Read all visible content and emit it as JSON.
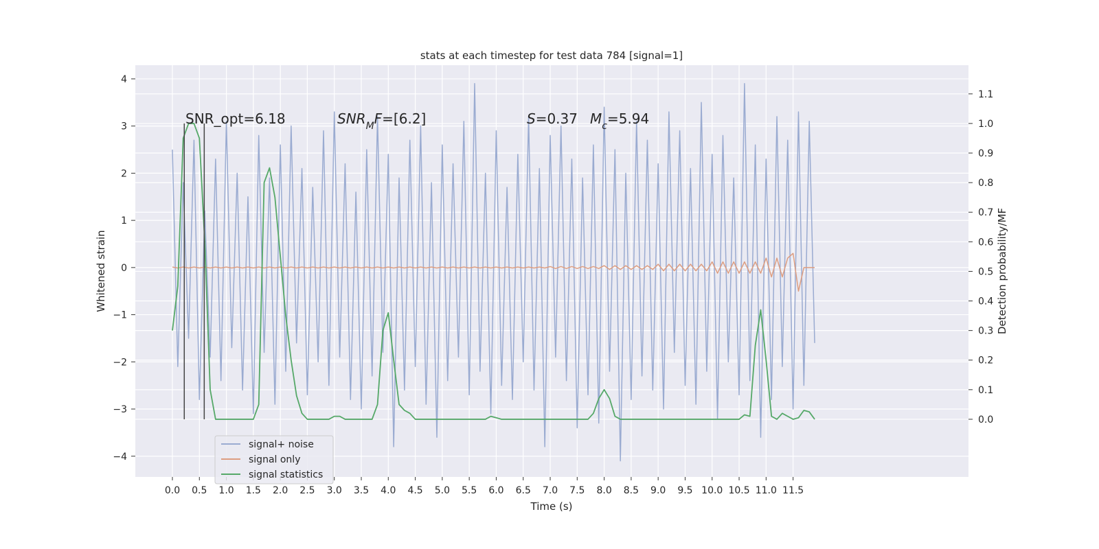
{
  "chart_data": {
    "type": "line",
    "title": "stats at each timestep for test data 784 [signal=1]",
    "xlabel": "Time (s)",
    "ylabel": "Whitened strain",
    "y2label": "Detection probability/MF",
    "grid": true,
    "legend": "lower left",
    "xlim": [
      -0.687,
      14.75
    ],
    "ylim": [
      -4.44,
      4.29
    ],
    "y2lim": [
      -0.195,
      1.197
    ],
    "xticks": [
      {
        "value": 0,
        "label": "0.0"
      },
      {
        "value": 0.5,
        "label": "0.5"
      },
      {
        "value": 1,
        "label": "1.0"
      },
      {
        "value": 1.5,
        "label": "1.5"
      },
      {
        "value": 2,
        "label": "2.0"
      },
      {
        "value": 2.5,
        "label": "2.5"
      },
      {
        "value": 3,
        "label": "3.0"
      },
      {
        "value": 3.5,
        "label": "3.5"
      },
      {
        "value": 4,
        "label": "4.0"
      },
      {
        "value": 4.5,
        "label": "4.5"
      },
      {
        "value": 5,
        "label": "5.0"
      },
      {
        "value": 5.5,
        "label": "5.5"
      },
      {
        "value": 6,
        "label": "6.0"
      },
      {
        "value": 6.5,
        "label": "6.5"
      },
      {
        "value": 7,
        "label": "7.0"
      },
      {
        "value": 7.5,
        "label": "7.5"
      },
      {
        "value": 8,
        "label": "8.0"
      },
      {
        "value": 8.5,
        "label": "8.5"
      },
      {
        "value": 9,
        "label": "9.0"
      },
      {
        "value": 9.5,
        "label": "9.5"
      },
      {
        "value": 10,
        "label": "10.0"
      },
      {
        "value": 10.5,
        "label": "10.5"
      },
      {
        "value": 11,
        "label": "11.0"
      },
      {
        "value": 11.5,
        "label": "11.5"
      }
    ],
    "yticks": [
      {
        "value": -4,
        "label": "−4"
      },
      {
        "value": -3,
        "label": "−3"
      },
      {
        "value": -2,
        "label": "−2"
      },
      {
        "value": -1,
        "label": "−1"
      },
      0,
      1,
      2,
      3,
      4
    ],
    "y2ticks": [
      {
        "value": 0,
        "label": "0.0"
      },
      {
        "value": 0.1,
        "label": "0.1"
      },
      {
        "value": 0.2,
        "label": "0.2"
      },
      {
        "value": 0.3,
        "label": "0.3"
      },
      {
        "value": 0.4,
        "label": "0.4"
      },
      {
        "value": 0.5,
        "label": "0.5"
      },
      {
        "value": 0.6,
        "label": "0.6"
      },
      {
        "value": 0.7,
        "label": "0.7"
      },
      {
        "value": 0.8,
        "label": "0.8"
      },
      {
        "value": 0.9,
        "label": "0.9"
      },
      {
        "value": 1,
        "label": "1.0"
      },
      {
        "value": 1.1,
        "label": "1.1"
      }
    ],
    "x": [
      0,
      0.1,
      0.2,
      0.3,
      0.4,
      0.5,
      0.6,
      0.7,
      0.8,
      0.9,
      1,
      1.1,
      1.2,
      1.3,
      1.4,
      1.5,
      1.6,
      1.7,
      1.8,
      1.9,
      2,
      2.1,
      2.2,
      2.3,
      2.4,
      2.5,
      2.6,
      2.7,
      2.8,
      2.9,
      3,
      3.1,
      3.2,
      3.3,
      3.4,
      3.5,
      3.6,
      3.7,
      3.8,
      3.9,
      4,
      4.1,
      4.2,
      4.3,
      4.4,
      4.5,
      4.6,
      4.7,
      4.8,
      4.9,
      5,
      5.1,
      5.2,
      5.3,
      5.4,
      5.5,
      5.6,
      5.7,
      5.8,
      5.9,
      6,
      6.1,
      6.2,
      6.3,
      6.4,
      6.5,
      6.6,
      6.7,
      6.8,
      6.9,
      7,
      7.1,
      7.2,
      7.3,
      7.4,
      7.5,
      7.6,
      7.7,
      7.8,
      7.9,
      8,
      8.1,
      8.2,
      8.3,
      8.4,
      8.5,
      8.6,
      8.7,
      8.8,
      8.9,
      9,
      9.1,
      9.2,
      9.3,
      9.4,
      9.5,
      9.6,
      9.7,
      9.8,
      9.9,
      10,
      10.1,
      10.2,
      10.3,
      10.4,
      10.5,
      10.6,
      10.7,
      10.8,
      10.9,
      11,
      11.1,
      11.2,
      11.3,
      11.4,
      11.5,
      11.6,
      11.7,
      11.8,
      11.9
    ],
    "series": [
      {
        "name": "signal+ noise",
        "color": "#9aabd1",
        "values": [
          2.5,
          -2.1,
          1.8,
          -1.5,
          2.7,
          -2.8,
          1.2,
          -1.9,
          2.3,
          -2.4,
          3.1,
          -1.7,
          2.0,
          -2.6,
          1.5,
          -3.1,
          2.8,
          -1.8,
          1.9,
          -2.9,
          2.6,
          -2.2,
          3.0,
          -1.6,
          2.1,
          -2.7,
          1.7,
          -2.0,
          2.9,
          -2.5,
          3.3,
          -1.9,
          2.2,
          -2.8,
          1.6,
          -3.0,
          2.5,
          -2.3,
          3.2,
          -1.8,
          2.4,
          -3.8,
          1.9,
          -2.6,
          2.7,
          -2.1,
          3.0,
          -2.9,
          1.8,
          -3.6,
          2.6,
          -2.4,
          2.2,
          -1.9,
          3.1,
          -2.7,
          3.9,
          -2.2,
          2.0,
          -3.1,
          2.9,
          -2.5,
          1.7,
          -2.8,
          2.4,
          -2.0,
          3.2,
          -2.6,
          2.1,
          -3.8,
          2.8,
          -1.9,
          3.0,
          -2.4,
          2.3,
          -3.4,
          1.9,
          -2.7,
          2.6,
          -3.3,
          3.4,
          -2.2,
          2.5,
          -4.1,
          2.0,
          -2.8,
          3.1,
          -2.3,
          2.7,
          -2.6,
          2.2,
          -3.0,
          3.3,
          -1.8,
          2.9,
          -2.5,
          2.1,
          -2.9,
          3.5,
          -2.2,
          2.4,
          -3.2,
          2.8,
          -2.0,
          1.9,
          -2.7,
          3.9,
          -2.4,
          2.6,
          -3.6,
          2.3,
          -2.8,
          3.2,
          -2.1,
          2.7,
          -3.0,
          3.3,
          -2.5,
          3.1,
          -1.6
        ]
      },
      {
        "name": "signal only",
        "color": "#dd9d80",
        "values": [
          0.01,
          -0.01,
          0.01,
          -0.01,
          0.01,
          -0.01,
          0.01,
          -0.01,
          0.01,
          -0.01,
          0.01,
          -0.01,
          0.01,
          -0.01,
          0.01,
          -0.01,
          0.01,
          -0.01,
          0.01,
          -0.01,
          0.01,
          -0.01,
          0.01,
          -0.01,
          0.01,
          -0.01,
          0.01,
          -0.01,
          0.01,
          -0.01,
          0.01,
          -0.01,
          0.01,
          -0.01,
          0.01,
          -0.01,
          0.01,
          -0.01,
          0.01,
          -0.01,
          0.01,
          -0.01,
          0.01,
          -0.01,
          0.01,
          -0.01,
          0.01,
          -0.01,
          0.01,
          -0.01,
          0.01,
          -0.01,
          0.01,
          -0.01,
          0.01,
          -0.01,
          0.01,
          -0.01,
          0.01,
          -0.01,
          0.01,
          -0.01,
          0.01,
          -0.01,
          0.01,
          -0.01,
          0.01,
          -0.01,
          0.01,
          -0.01,
          0.02,
          -0.02,
          0.02,
          -0.02,
          0.02,
          -0.02,
          0.02,
          -0.02,
          0.02,
          -0.02,
          0.04,
          -0.04,
          0.04,
          -0.04,
          0.04,
          -0.04,
          0.04,
          -0.04,
          0.04,
          -0.04,
          0.07,
          -0.07,
          0.07,
          -0.07,
          0.07,
          -0.07,
          0.07,
          -0.07,
          0.07,
          -0.07,
          0.12,
          -0.12,
          0.12,
          -0.12,
          0.12,
          -0.12,
          0.12,
          -0.12,
          0.12,
          -0.12,
          0.2,
          -0.2,
          0.2,
          -0.2,
          0.2,
          0.3,
          -0.5,
          0,
          0,
          0
        ]
      },
      {
        "name": "signal statistics",
        "color": "#55a868",
        "axis": "y2",
        "values": [
          0.3,
          0.45,
          0.95,
          1.0,
          1.0,
          0.95,
          0.6,
          0.1,
          0,
          0,
          0,
          0,
          0,
          0,
          0,
          0,
          0.05,
          0.8,
          0.85,
          0.75,
          0.55,
          0.35,
          0.2,
          0.08,
          0.02,
          0,
          0,
          0,
          0,
          0,
          0.01,
          0.01,
          0,
          0,
          0,
          0,
          0,
          0,
          0.05,
          0.3,
          0.36,
          0.2,
          0.05,
          0.03,
          0.02,
          0,
          0,
          0,
          0,
          0,
          0,
          0,
          0,
          0,
          0,
          0,
          0,
          0,
          0,
          0.01,
          0.005,
          0,
          0,
          0,
          0,
          0,
          0,
          0,
          0,
          0,
          0,
          0,
          0,
          0,
          0,
          0,
          0,
          0,
          0.02,
          0.07,
          0.1,
          0.07,
          0.01,
          0,
          0,
          0,
          0,
          0,
          0,
          0,
          0,
          0,
          0,
          0,
          0,
          0,
          0,
          0,
          0,
          0,
          0,
          0,
          0,
          0,
          0,
          0,
          0.015,
          0.01,
          0.25,
          0.37,
          0.2,
          0.01,
          0,
          0.02,
          0.01,
          0,
          0.005,
          0.03,
          0.025,
          0
        ]
      }
    ],
    "vlines": {
      "x": [
        0.22,
        0.59
      ],
      "ymin": 0,
      "ymax": 1,
      "axis": "y2",
      "color": "#444444"
    },
    "annotations": [
      [
        {
          "text": "SNR_opt=6.18"
        }
      ],
      [
        {
          "text": "SNR",
          "italic": true
        },
        {
          "text": "M",
          "italic": true,
          "sub": true
        },
        {
          "text": "F",
          "italic": true
        },
        {
          "text": "=[6.2]"
        }
      ],
      [
        {
          "text": "S",
          "italic": true
        },
        {
          "text": "=0.37"
        }
      ],
      [
        {
          "text": "M",
          "italic": true
        },
        {
          "text": "c",
          "italic": true,
          "sub": true
        },
        {
          "text": "=5.94"
        }
      ]
    ]
  }
}
